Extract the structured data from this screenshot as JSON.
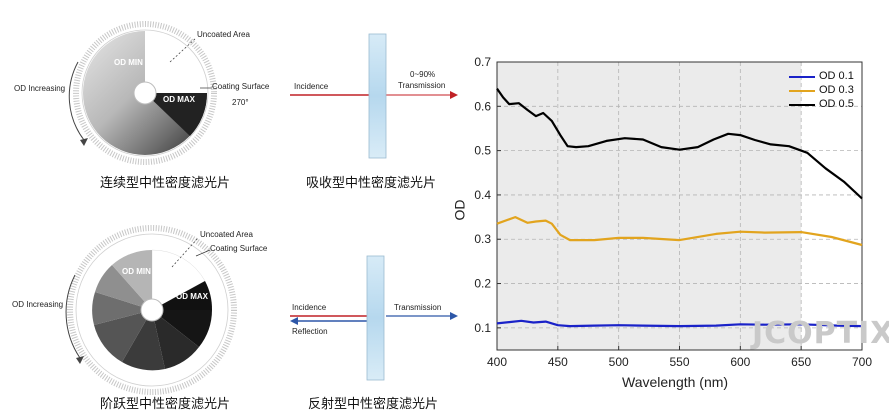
{
  "continuous": {
    "uncoated": "Uncoated Area",
    "od_min": "OD MIN",
    "od_max": "OD MAX",
    "coating": "Coating Surface",
    "angle": "270°",
    "od_increasing": "OD Increasing",
    "caption": "连续型中性密度滤光片"
  },
  "absorptive": {
    "incidence": "Incidence",
    "range": "0~90%",
    "transmission": "Transmission",
    "caption": "吸收型中性密度滤光片"
  },
  "stepped": {
    "uncoated": "Uncoated Area",
    "coating": "Coating Surface",
    "od_min": "OD MIN",
    "od_max": "OD MAX",
    "od_increasing": "OD Increasing",
    "caption": "阶跃型中性密度滤光片"
  },
  "reflective": {
    "incidence": "Incidence",
    "transmission": "Transmission",
    "reflection": "Reflection",
    "caption": "反射型中性密度滤光片"
  },
  "watermark": "JCOPTIX",
  "chart_data": {
    "type": "line",
    "xlabel": "Wavelength (nm)",
    "ylabel": "OD",
    "xlim": [
      400,
      700
    ],
    "ylim": [
      0.05,
      0.7
    ],
    "xticks": [
      400,
      450,
      500,
      550,
      600,
      650,
      700
    ],
    "yticks": [
      0.1,
      0.2,
      0.3,
      0.4,
      0.5,
      0.6,
      0.7
    ],
    "shaded_range": [
      400,
      650
    ],
    "grid": true,
    "legend_position": "top-right",
    "series": [
      {
        "name": "OD 0.1",
        "color": "#1a22c8",
        "x": [
          400,
          410,
          420,
          430,
          440,
          450,
          460,
          480,
          500,
          520,
          550,
          580,
          600,
          620,
          650,
          680,
          700
        ],
        "y": [
          0.11,
          0.113,
          0.116,
          0.112,
          0.114,
          0.106,
          0.104,
          0.105,
          0.106,
          0.105,
          0.104,
          0.105,
          0.108,
          0.107,
          0.108,
          0.105,
          0.104
        ]
      },
      {
        "name": "OD 0.3",
        "color": "#e2a41e",
        "x": [
          400,
          410,
          415,
          425,
          432,
          440,
          445,
          452,
          460,
          480,
          500,
          520,
          550,
          580,
          600,
          620,
          650,
          675,
          700
        ],
        "y": [
          0.335,
          0.345,
          0.35,
          0.337,
          0.34,
          0.342,
          0.335,
          0.31,
          0.298,
          0.298,
          0.303,
          0.303,
          0.298,
          0.312,
          0.317,
          0.315,
          0.316,
          0.305,
          0.287
        ]
      },
      {
        "name": "OD 0.5",
        "color": "#000000",
        "x": [
          400,
          405,
          410,
          418,
          425,
          432,
          438,
          445,
          452,
          458,
          465,
          475,
          490,
          505,
          520,
          535,
          550,
          565,
          578,
          590,
          600,
          612,
          625,
          640,
          655,
          670,
          685,
          700
        ],
        "y": [
          0.64,
          0.62,
          0.605,
          0.607,
          0.592,
          0.578,
          0.585,
          0.567,
          0.535,
          0.51,
          0.508,
          0.51,
          0.522,
          0.528,
          0.525,
          0.508,
          0.502,
          0.508,
          0.525,
          0.538,
          0.535,
          0.524,
          0.514,
          0.51,
          0.495,
          0.46,
          0.43,
          0.392
        ]
      }
    ]
  }
}
